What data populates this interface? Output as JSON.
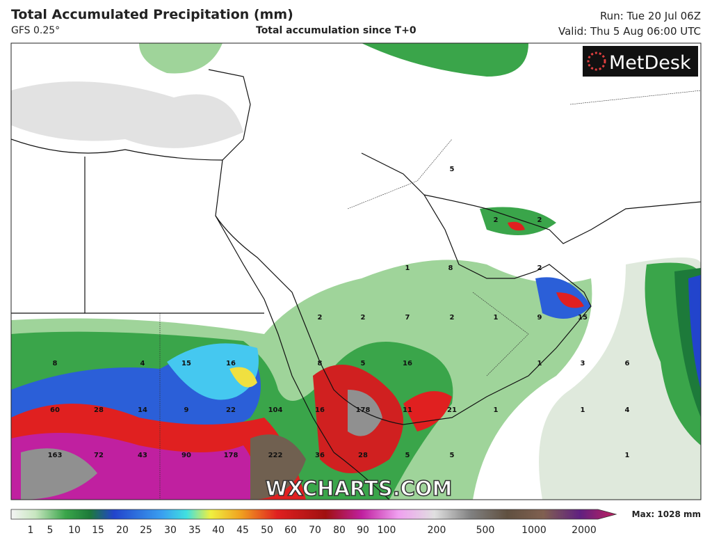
{
  "header": {
    "title": "Total Accumulated Precipitation (mm)",
    "model": "GFS 0.25°",
    "subtitle": "Total accumulation since T+0",
    "run": "Run: Tue 20 Jul 06Z",
    "valid": "Valid: Thu 5 Aug 06:00 UTC"
  },
  "logo": "MetDesk",
  "watermark": "WXCHARTS.COM",
  "map": {
    "labels": [
      5,
      2,
      2,
      1,
      8,
      2,
      2,
      2,
      7,
      2,
      1,
      9,
      15,
      8,
      4,
      15,
      16,
      8,
      5,
      16,
      1,
      3,
      6,
      60,
      28,
      14,
      9,
      22,
      104,
      16,
      178,
      11,
      21,
      1,
      1,
      4,
      163,
      72,
      43,
      90,
      178,
      222,
      36,
      28,
      5,
      5,
      1
    ]
  },
  "colorbar": {
    "ticks": [
      1,
      5,
      10,
      15,
      20,
      25,
      30,
      35,
      40,
      45,
      50,
      60,
      70,
      80,
      90,
      100,
      200,
      500,
      1000,
      2000
    ],
    "max_label": "Max: 1028 mm"
  }
}
